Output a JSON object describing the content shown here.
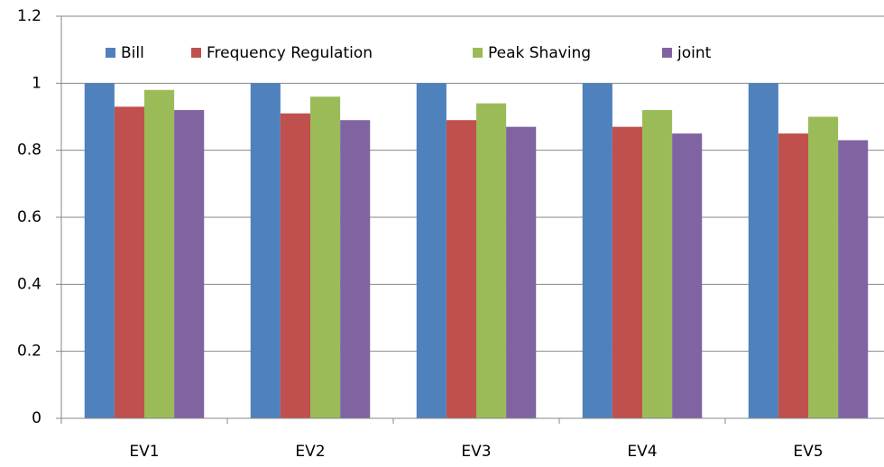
{
  "chart_data": {
    "type": "bar",
    "categories": [
      "EV1",
      "EV2",
      "EV3",
      "EV4",
      "EV5"
    ],
    "series": [
      {
        "name": "Bill",
        "color": "#4f81bd",
        "values": [
          1,
          1,
          1,
          1,
          1
        ]
      },
      {
        "name": "Frequency  Regulation",
        "color": "#c0504d",
        "values": [
          0.93,
          0.91,
          0.89,
          0.87,
          0.85
        ]
      },
      {
        "name": "Peak Shaving",
        "color": "#9bbb59",
        "values": [
          0.98,
          0.96,
          0.94,
          0.92,
          0.9
        ]
      },
      {
        "name": "joint",
        "color": "#8064a2",
        "values": [
          0.92,
          0.89,
          0.87,
          0.85,
          0.83
        ]
      }
    ],
    "ylim": [
      0,
      1.2
    ],
    "yticks": [
      0,
      0.2,
      0.4,
      0.6,
      0.8,
      1,
      1.2
    ],
    "grid": true,
    "legend": "top"
  }
}
